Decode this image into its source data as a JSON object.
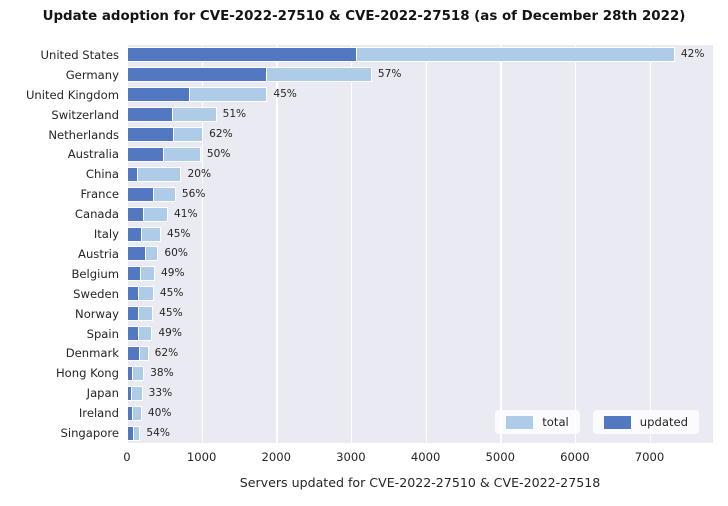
{
  "title": "Update adoption for CVE-2022-27510 & CVE-2022-27518 (as of December 28th 2022)",
  "chart_data": {
    "type": "bar",
    "orientation": "horizontal",
    "title": "Update adoption for CVE-2022-27510 & CVE-2022-27518 (as of December 28th 2022)",
    "xlabel": "Servers updated for CVE-2022-27510 & CVE-2022-27518",
    "ylabel": "",
    "categories": [
      "United States",
      "Germany",
      "United Kingdom",
      "Switzerland",
      "Netherlands",
      "Australia",
      "China",
      "France",
      "Canada",
      "Italy",
      "Austria",
      "Belgium",
      "Sweden",
      "Norway",
      "Spain",
      "Denmark",
      "Hong Kong",
      "Japan",
      "Ireland",
      "Singapore"
    ],
    "series": [
      {
        "name": "total",
        "color": "#aecce8",
        "values": [
          7340,
          3280,
          1880,
          1200,
          1020,
          990,
          730,
          655,
          550,
          455,
          420,
          375,
          360,
          350,
          340,
          290,
          230,
          210,
          200,
          180
        ]
      },
      {
        "name": "updated",
        "color": "#5378c2",
        "values": [
          3080,
          1870,
          846,
          612,
          632,
          495,
          146,
          367,
          226,
          205,
          252,
          184,
          162,
          158,
          167,
          180,
          87,
          69,
          80,
          97
        ]
      }
    ],
    "bar_labels": [
      "42%",
      "57%",
      "45%",
      "51%",
      "62%",
      "50%",
      "20%",
      "56%",
      "41%",
      "45%",
      "60%",
      "49%",
      "45%",
      "45%",
      "49%",
      "62%",
      "38%",
      "33%",
      "40%",
      "54%"
    ],
    "xticks": [
      0,
      1000,
      2000,
      3000,
      4000,
      5000,
      6000,
      7000
    ],
    "xlim": [
      0,
      7850
    ],
    "grid": true,
    "plot_bg": "#eaeaf2",
    "grid_color": "#ffffff",
    "legend": {
      "position": "lower right",
      "entries": [
        "total",
        "updated"
      ]
    }
  }
}
